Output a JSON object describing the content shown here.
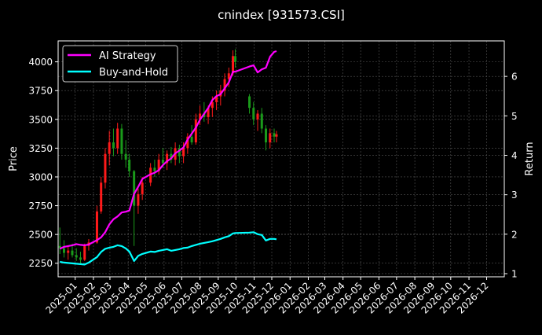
{
  "chart_data": {
    "type": "line",
    "title": "cnindex [931573.CSI]",
    "ylabel": "Price",
    "y2label": "Return",
    "ylim": [
      2132,
      4182
    ],
    "y2lim": [
      0.92,
      6.9
    ],
    "xlim": [
      "2024-12-03",
      "2026-12-31"
    ],
    "yticks": [
      2250,
      2500,
      2750,
      3000,
      3250,
      3500,
      3750,
      4000
    ],
    "y2ticks": [
      1,
      2,
      3,
      4,
      5,
      6
    ],
    "xticks": [
      "2025-01",
      "2025-02",
      "2025-03",
      "2025-04",
      "2025-05",
      "2025-06",
      "2025-07",
      "2025-08",
      "2025-09",
      "2025-10",
      "2025-11",
      "2025-12",
      "2026-01",
      "2026-02",
      "2026-03",
      "2026-04",
      "2026-05",
      "2026-06",
      "2026-07",
      "2026-08",
      "2026-09",
      "2026-10",
      "2026-11",
      "2026-12"
    ],
    "grid": true,
    "legend_position": "top-left",
    "colors": {
      "up": "#ff1a1a",
      "down": "#1a9a1a",
      "ai": "#ff00ff",
      "bh": "#00ffff",
      "background": "#000000",
      "grid": "#555555"
    },
    "candles": {
      "columns": [
        "date",
        "open",
        "high",
        "low",
        "close"
      ],
      "rows": [
        [
          "2024-12-06",
          2400,
          2560,
          2330,
          2380
        ],
        [
          "2024-12-13",
          2380,
          2450,
          2300,
          2340
        ],
        [
          "2024-12-20",
          2340,
          2400,
          2280,
          2360
        ],
        [
          "2024-12-27",
          2360,
          2420,
          2300,
          2320
        ],
        [
          "2025-01-03",
          2320,
          2380,
          2270,
          2300
        ],
        [
          "2025-01-10",
          2300,
          2350,
          2250,
          2280
        ],
        [
          "2025-01-17",
          2280,
          2420,
          2270,
          2400
        ],
        [
          "2025-01-24",
          2400,
          2460,
          2360,
          2430
        ],
        [
          "2025-02-07",
          2430,
          2750,
          2420,
          2700
        ],
        [
          "2025-02-14",
          2700,
          3000,
          2680,
          2950
        ],
        [
          "2025-02-21",
          2950,
          3250,
          2900,
          3200
        ],
        [
          "2025-02-28",
          3200,
          3400,
          3100,
          3300
        ],
        [
          "2025-03-07",
          3300,
          3420,
          3180,
          3250
        ],
        [
          "2025-03-14",
          3250,
          3470,
          3200,
          3420
        ],
        [
          "2025-03-21",
          3420,
          3460,
          3150,
          3200
        ],
        [
          "2025-03-28",
          3200,
          3320,
          3080,
          3150
        ],
        [
          "2025-04-03",
          3150,
          3200,
          3000,
          3050
        ],
        [
          "2025-04-11",
          3050,
          3060,
          2400,
          2750
        ],
        [
          "2025-04-18",
          2750,
          2900,
          2680,
          2850
        ],
        [
          "2025-04-25",
          2850,
          3000,
          2800,
          2950
        ],
        [
          "2025-05-09",
          2950,
          3120,
          2920,
          3080
        ],
        [
          "2025-05-16",
          3080,
          3150,
          3000,
          3050
        ],
        [
          "2025-05-23",
          3050,
          3200,
          3020,
          3150
        ],
        [
          "2025-05-30",
          3150,
          3250,
          3080,
          3120
        ],
        [
          "2025-06-06",
          3120,
          3230,
          3060,
          3200
        ],
        [
          "2025-06-13",
          3200,
          3260,
          3120,
          3150
        ],
        [
          "2025-06-20",
          3150,
          3300,
          3100,
          3250
        ],
        [
          "2025-06-27",
          3250,
          3280,
          3120,
          3180
        ],
        [
          "2025-07-04",
          3180,
          3300,
          3120,
          3250
        ],
        [
          "2025-07-11",
          3250,
          3380,
          3200,
          3350
        ],
        [
          "2025-07-18",
          3350,
          3450,
          3280,
          3300
        ],
        [
          "2025-07-25",
          3300,
          3550,
          3280,
          3500
        ],
        [
          "2025-08-01",
          3500,
          3620,
          3450,
          3550
        ],
        [
          "2025-08-08",
          3550,
          3650,
          3480,
          3520
        ],
        [
          "2025-08-15",
          3520,
          3620,
          3460,
          3600
        ],
        [
          "2025-08-22",
          3600,
          3700,
          3520,
          3650
        ],
        [
          "2025-08-29",
          3650,
          3750,
          3580,
          3700
        ],
        [
          "2025-09-05",
          3700,
          3800,
          3620,
          3750
        ],
        [
          "2025-09-12",
          3750,
          3900,
          3700,
          3850
        ],
        [
          "2025-09-19",
          3850,
          3950,
          3780,
          3900
        ],
        [
          "2025-09-26",
          3900,
          4100,
          3880,
          4050
        ],
        [
          "2025-09-30",
          4050,
          4110,
          3950,
          4000
        ],
        [
          "2025-10-24",
          3700,
          3720,
          3550,
          3600
        ],
        [
          "2025-10-31",
          3600,
          3650,
          3450,
          3500
        ],
        [
          "2025-11-07",
          3500,
          3580,
          3400,
          3550
        ],
        [
          "2025-11-14",
          3550,
          3600,
          3380,
          3420
        ],
        [
          "2025-11-21",
          3420,
          3450,
          3230,
          3300
        ],
        [
          "2025-11-28",
          3300,
          3420,
          3250,
          3380
        ],
        [
          "2025-12-05",
          3380,
          3420,
          3300,
          3350
        ],
        [
          "2025-12-09",
          3350,
          3400,
          3300,
          3370
        ]
      ]
    },
    "series": [
      {
        "name": "AI Strategy",
        "axis": "right",
        "values": [
          1.63,
          1.68,
          1.7,
          1.72,
          1.75,
          1.73,
          1.72,
          1.74,
          1.85,
          1.92,
          2.05,
          2.25,
          2.38,
          2.45,
          2.55,
          2.57,
          2.6,
          3.02,
          3.2,
          3.4,
          3.52,
          3.56,
          3.62,
          3.75,
          3.85,
          3.92,
          4.05,
          4.12,
          4.2,
          4.4,
          4.55,
          4.7,
          4.9,
          5.05,
          5.2,
          5.4,
          5.5,
          5.55,
          5.7,
          5.85,
          6.12,
          6.12,
          6.25,
          6.28,
          6.1,
          6.18,
          6.22,
          6.5,
          6.62,
          6.64
        ]
      },
      {
        "name": "Buy-and-Hold",
        "axis": "right",
        "values": [
          1.3,
          1.28,
          1.27,
          1.26,
          1.25,
          1.24,
          1.23,
          1.28,
          1.42,
          1.55,
          1.63,
          1.66,
          1.68,
          1.72,
          1.7,
          1.64,
          1.56,
          1.32,
          1.45,
          1.5,
          1.56,
          1.55,
          1.58,
          1.6,
          1.62,
          1.58,
          1.6,
          1.62,
          1.65,
          1.66,
          1.7,
          1.73,
          1.76,
          1.78,
          1.8,
          1.82,
          1.85,
          1.88,
          1.92,
          1.95,
          2.02,
          2.03,
          2.04,
          2.05,
          2.0,
          1.98,
          1.84,
          1.88,
          1.88,
          1.87
        ]
      }
    ]
  }
}
